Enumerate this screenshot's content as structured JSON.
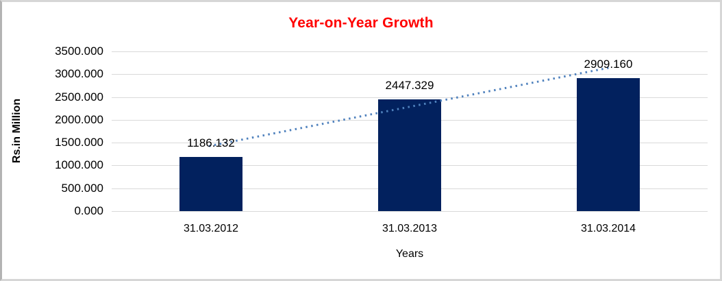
{
  "chart_data": {
    "type": "bar",
    "title": "Year-on-Year Growth",
    "xlabel": "Years",
    "ylabel": "Rs.in Million",
    "categories": [
      "31.03.2012",
      "31.03.2013",
      "31.03.2014"
    ],
    "values": [
      1186.132,
      2447.329,
      2909.16
    ],
    "value_labels": [
      "1186.132",
      "2447.329",
      "2909.160"
    ],
    "ylim": [
      0,
      3500
    ],
    "ytick_values": [
      0,
      500,
      1000,
      1500,
      2000,
      2500,
      3000,
      3500
    ],
    "ytick_labels": [
      "0.000",
      "500.000",
      "1000.000",
      "1500.000",
      "2000.000",
      "2500.000",
      "3000.000",
      "3500.000"
    ],
    "grid": "horizontal",
    "legend": "none",
    "trendline": {
      "type": "linear",
      "style": "dotted"
    },
    "colors": {
      "bar": "#02215e",
      "title": "#ff0000",
      "gridline": "#d9d9d9",
      "trendline": "#4f81bd",
      "text": "#000000"
    }
  }
}
